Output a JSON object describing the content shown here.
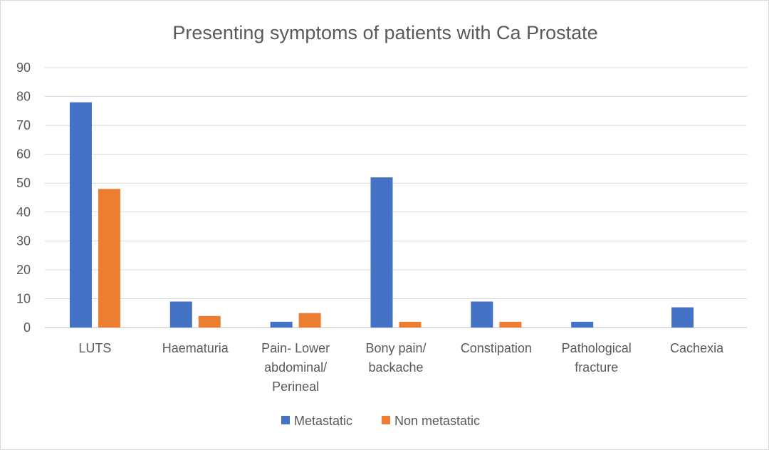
{
  "chart_data": {
    "type": "bar",
    "title": "Presenting symptoms of patients with Ca Prostate",
    "xlabel": "",
    "ylabel": "",
    "ylim": [
      0,
      90
    ],
    "yticks": [
      "0",
      "10",
      "20",
      "30",
      "40",
      "50",
      "60",
      "70",
      "80",
      "90"
    ],
    "categories": [
      [
        "LUTS"
      ],
      [
        "Haematuria"
      ],
      [
        "Pain- Lower",
        "abdominal/",
        "Perineal"
      ],
      [
        "Bony pain/",
        "backache"
      ],
      [
        "Constipation"
      ],
      [
        "Pathological",
        "fracture"
      ],
      [
        "Cachexia"
      ]
    ],
    "series": [
      {
        "name": "Metastatic",
        "color": "#4472C4",
        "values": [
          78,
          9,
          2,
          52,
          9,
          2,
          7
        ]
      },
      {
        "name": "Non metastatic",
        "color": "#ED7D31",
        "values": [
          48,
          4,
          5,
          2,
          2,
          0,
          0
        ]
      }
    ],
    "grid": true,
    "legend": "bottom"
  }
}
